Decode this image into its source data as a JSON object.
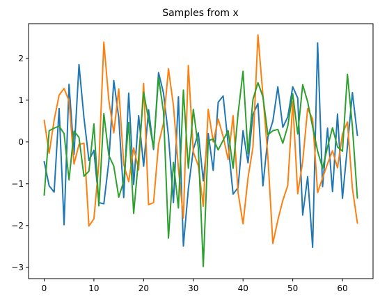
{
  "chart_data": {
    "type": "line",
    "title": "Samples from x",
    "xlabel": "",
    "ylabel": "",
    "xlim": [
      -3.15,
      66.15
    ],
    "ylim": [
      -3.27,
      2.83
    ],
    "grid": false,
    "xticks": [
      0,
      10,
      20,
      30,
      40,
      50,
      60
    ],
    "yticks": [
      -3,
      -2,
      -1,
      0,
      1,
      2
    ],
    "x": [
      0,
      1,
      2,
      3,
      4,
      5,
      6,
      7,
      8,
      9,
      10,
      11,
      12,
      13,
      14,
      15,
      16,
      17,
      18,
      19,
      20,
      21,
      22,
      23,
      24,
      25,
      26,
      27,
      28,
      29,
      30,
      31,
      32,
      33,
      34,
      35,
      36,
      37,
      38,
      39,
      40,
      41,
      42,
      43,
      44,
      45,
      46,
      47,
      48,
      49,
      50,
      51,
      52,
      53,
      54,
      55,
      56,
      57,
      58,
      59,
      60,
      61,
      62,
      63
    ],
    "series": [
      {
        "color": "#1f77b4",
        "values": [
          -0.47,
          -1.05,
          -1.2,
          0.8,
          -1.98,
          1.38,
          -0.3,
          1.85,
          0.58,
          -0.44,
          -0.2,
          -1.45,
          -1.48,
          -0.47,
          1.47,
          0.58,
          -1.33,
          1.17,
          -1.02,
          0.63,
          -0.58,
          0.77,
          -0.18,
          1.66,
          1.17,
          0.14,
          -1.45,
          1.08,
          -2.49,
          -1.12,
          -0.18,
          0.22,
          -0.93,
          0.2,
          -0.68,
          0.95,
          1.1,
          -0.05,
          -1.25,
          -1.09,
          0.27,
          -0.5,
          0.66,
          0.92,
          -1.05,
          0.12,
          0.5,
          1.32,
          0.35,
          0.6,
          1.32,
          1.05,
          -1.75,
          -0.83,
          -2.52,
          2.37,
          -1.07,
          0.33,
          -1.19,
          0.67,
          -1.35,
          -0.1,
          1.18,
          0.16
        ]
      },
      {
        "color": "#ff7f0e",
        "values": [
          0.52,
          -0.27,
          0.52,
          1.12,
          1.28,
          0.98,
          -0.53,
          -0.06,
          -0.03,
          -2.01,
          -1.84,
          -0.52,
          2.39,
          1.0,
          0.22,
          1.27,
          -0.54,
          -0.95,
          -0.14,
          -0.67,
          1.4,
          -1.5,
          -1.45,
          -0.05,
          0.45,
          1.75,
          0.87,
          -0.64,
          -1.82,
          1.83,
          -0.24,
          -0.57,
          -1.54,
          0.78,
          0.0,
          0.55,
          0.13,
          -0.42,
          0.63,
          -1.21,
          -1.96,
          -0.86,
          -0.12,
          2.56,
          1.12,
          -0.36,
          -2.43,
          -1.87,
          -1.4,
          -1.04,
          0.97,
          -1.24,
          -0.47,
          0.8,
          0.55,
          -1.21,
          -0.86,
          -0.52,
          -0.21,
          -0.62,
          0.19,
          0.48,
          -1.11,
          -1.94
        ]
      },
      {
        "color": "#2ca02c",
        "values": [
          -1.27,
          0.27,
          0.33,
          0.38,
          0.2,
          -0.91,
          0.26,
          0.11,
          -0.82,
          -0.7,
          0.43,
          -1.53,
          0.68,
          -0.32,
          -0.58,
          -1.32,
          -0.94,
          0.47,
          -1.71,
          -0.37,
          1.19,
          0.54,
          -0.15,
          1.55,
          0.72,
          -2.3,
          -0.49,
          -1.58,
          1.24,
          -0.63,
          0.78,
          -0.13,
          -2.98,
          0.03,
          0.07,
          -0.19,
          0.04,
          0.27,
          -0.63,
          0.68,
          1.69,
          -0.28,
          1.02,
          1.42,
          1.08,
          0.17,
          0.27,
          0.3,
          -0.03,
          0.38,
          1.15,
          0.19,
          1.37,
          0.96,
          0.36,
          -0.22,
          -0.63,
          -0.12,
          0.34,
          -0.12,
          -0.22,
          1.62,
          0.36,
          -1.34
        ]
      }
    ]
  }
}
